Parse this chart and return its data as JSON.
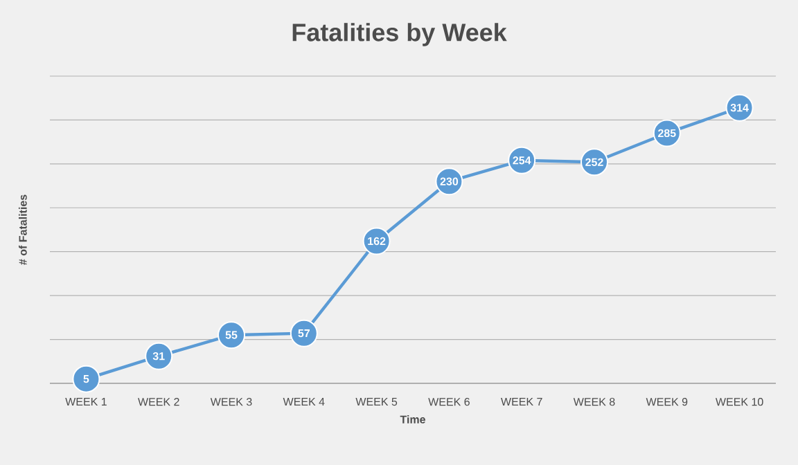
{
  "chart_data": {
    "type": "line",
    "title": "Fatalities by Week",
    "xlabel": "Time",
    "ylabel": "# of Fatalities",
    "categories": [
      "WEEK 1",
      "WEEK 2",
      "WEEK 3",
      "WEEK 4",
      "WEEK 5",
      "WEEK 6",
      "WEEK 7",
      "WEEK 8",
      "WEEK 9",
      "WEEK 10"
    ],
    "series": [
      {
        "color": "#5b9bd5",
        "values": [
          5,
          31,
          55,
          57,
          162,
          230,
          254,
          252,
          285,
          314
        ]
      }
    ],
    "ylim": [
      0,
      350
    ],
    "yticks": [
      {
        "value": 0,
        "label": null
      },
      {
        "value": 50,
        "label": null
      },
      {
        "value": 100,
        "label": null
      },
      {
        "value": 150,
        "label": null
      },
      {
        "value": 200,
        "label": null
      },
      {
        "value": 250,
        "label": null
      },
      {
        "value": 300,
        "label": null
      },
      {
        "value": 350,
        "label": null
      }
    ],
    "tick_labels": "x",
    "grid": "y",
    "data_labels": true,
    "marker": "circle",
    "line_style": "solid"
  }
}
